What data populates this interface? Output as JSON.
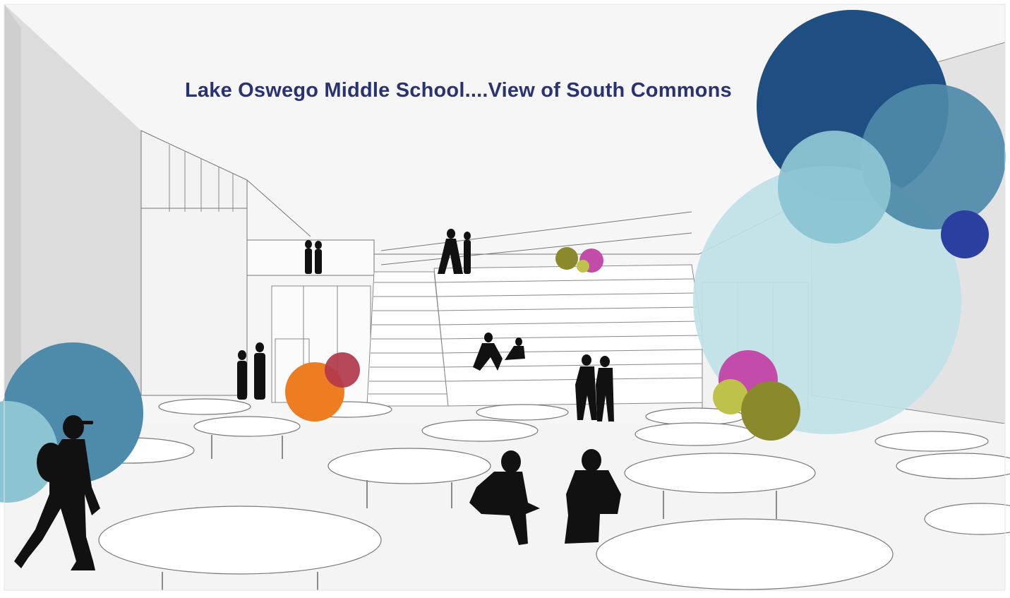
{
  "title": "Lake Oswego Middle School....View of South Commons",
  "title_color": "#2a3372",
  "image": {
    "subject": "architectural rendering of a school commons",
    "palette": [
      "#1f4f82",
      "#4e8aa9",
      "#8cc4d2",
      "#bfe1e7",
      "#2a3fa0",
      "#ee7d22",
      "#b0384b",
      "#c34ba9",
      "#8a8a2c",
      "#bfc24a"
    ]
  }
}
